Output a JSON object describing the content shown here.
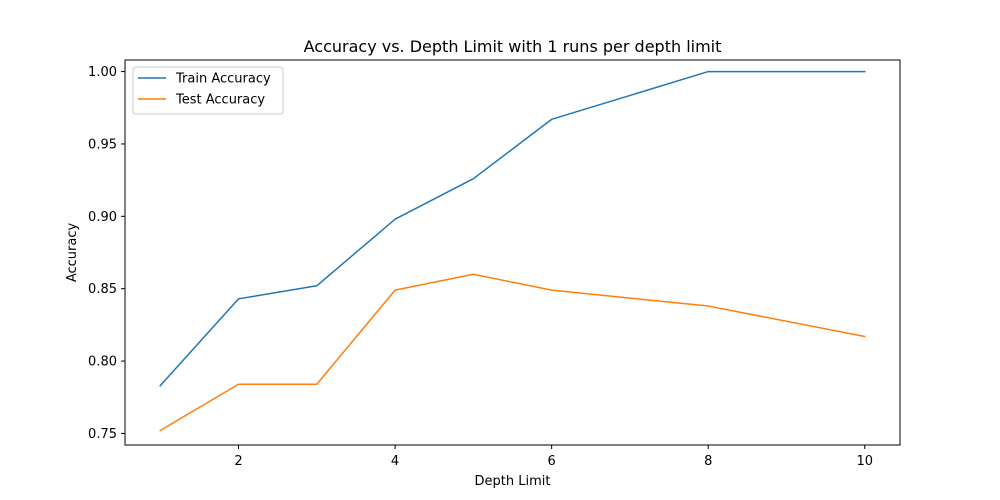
{
  "chart_data": {
    "type": "line",
    "title": "Accuracy vs. Depth Limit with 1 runs per depth limit",
    "xlabel": "Depth Limit",
    "ylabel": "Accuracy",
    "xlim": [
      0.55,
      10.45
    ],
    "ylim": [
      0.742,
      1.008
    ],
    "xticks": [
      2,
      4,
      6,
      8,
      10
    ],
    "xtick_labels": [
      "2",
      "4",
      "6",
      "8",
      "10"
    ],
    "yticks": [
      0.75,
      0.8,
      0.85,
      0.9,
      0.95,
      1.0
    ],
    "ytick_labels": [
      "0.75",
      "0.80",
      "0.85",
      "0.90",
      "0.95",
      "1.00"
    ],
    "grid": false,
    "legend_position": "top-left",
    "x": [
      1,
      2,
      3,
      4,
      5,
      6,
      8,
      10
    ],
    "series": [
      {
        "name": "Train Accuracy",
        "color": "#1f77b4",
        "values": [
          0.783,
          0.843,
          0.852,
          0.898,
          0.926,
          0.967,
          1.0,
          1.0
        ]
      },
      {
        "name": "Test Accuracy",
        "color": "#ff7f0e",
        "values": [
          0.752,
          0.784,
          0.784,
          0.849,
          0.86,
          0.849,
          0.838,
          0.817
        ]
      }
    ]
  }
}
